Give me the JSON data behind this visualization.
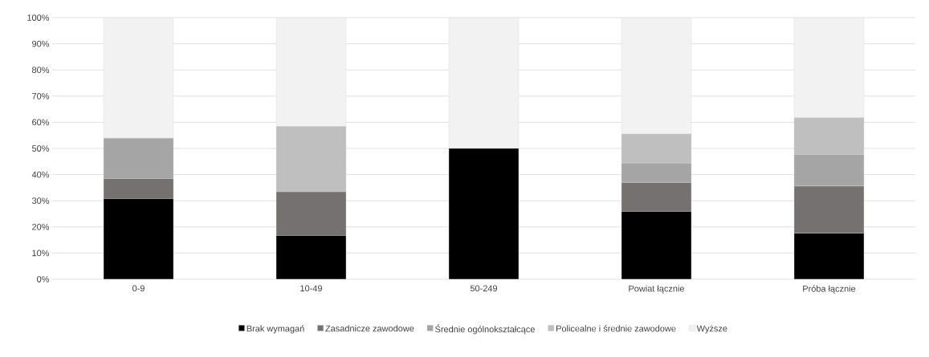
{
  "chart_data": {
    "type": "bar",
    "stacked": true,
    "categories": [
      "0-9",
      "10-49",
      "50-249",
      "Powiat łącznie",
      "Próba łącznie"
    ],
    "series": [
      {
        "name": "Brak wymagań",
        "color": "#000000",
        "values": [
          30.8,
          16.7,
          50,
          25.9,
          17.6
        ]
      },
      {
        "name": "Zasadnicze zawodowe",
        "color": "#767171",
        "values": [
          7.7,
          16.7,
          0,
          11.1,
          18.0
        ]
      },
      {
        "name": "Średnie ogólnokształcące",
        "color": "#a5a5a5",
        "values": [
          15.4,
          0,
          0,
          7.4,
          12.1
        ]
      },
      {
        "name": "Policealne i średnie zawodowe",
        "color": "#bfbfbf",
        "values": [
          0,
          25.0,
          0,
          11.1,
          14.0
        ]
      },
      {
        "name": "Wyższe",
        "color": "#f2f2f2",
        "values": [
          46.1,
          41.6,
          50,
          44.5,
          38.3
        ]
      }
    ],
    "ylim": [
      0,
      100
    ],
    "yticks": [
      {
        "value": 0,
        "label": "0%"
      },
      {
        "value": 10,
        "label": "10%"
      },
      {
        "value": 20,
        "label": "20%"
      },
      {
        "value": 30,
        "label": "30%"
      },
      {
        "value": 40,
        "label": "40%"
      },
      {
        "value": 50,
        "label": "50%"
      },
      {
        "value": 60,
        "label": "60%"
      },
      {
        "value": 70,
        "label": "70%"
      },
      {
        "value": 80,
        "label": "80%"
      },
      {
        "value": 90,
        "label": "90%"
      },
      {
        "value": 100,
        "label": "100%"
      }
    ],
    "grid": "y",
    "legend": "bottom"
  }
}
